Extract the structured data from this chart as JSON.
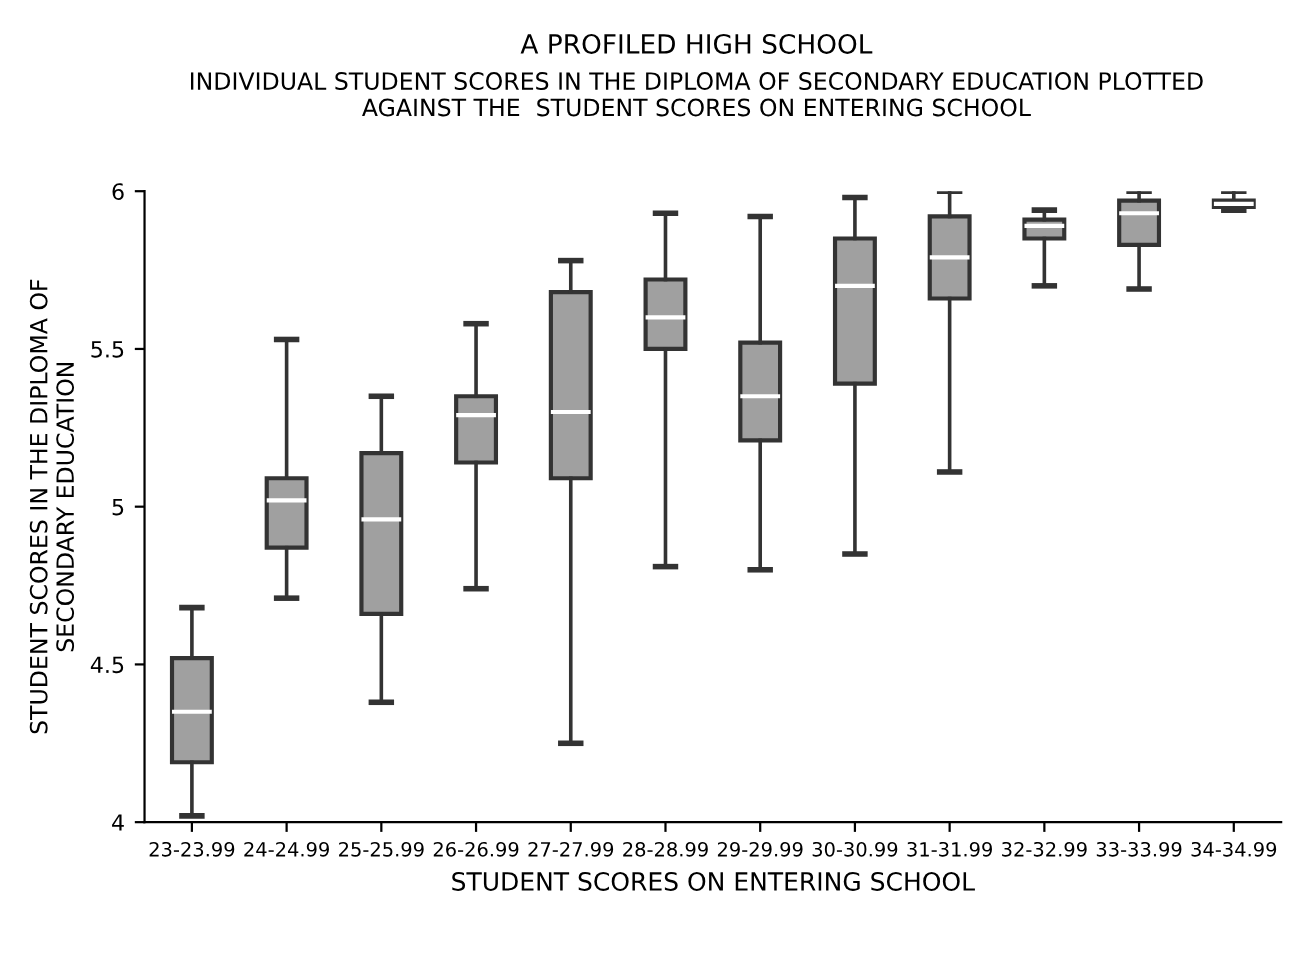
{
  "chart_data": {
    "type": "box",
    "title": "A PROFILED HIGH SCHOOL",
    "subtitle": "INDIVIDUAL STUDENT SCORES IN THE DIPLOMA OF SECONDARY EDUCATION PLOTTED\nAGAINST THE  STUDENT SCORES ON ENTERING SCHOOL",
    "xlabel": "STUDENT SCORES ON ENTERING SCHOOL",
    "ylabel": "STUDENT SCORES IN THE DIPLOMA OF\nSECONDARY EDUCATION",
    "categories": [
      "23-23.99",
      "24-24.99",
      "25-25.99",
      "26-26.99",
      "27-27.99",
      "28-28.99",
      "29-29.99",
      "30-30.99",
      "31-31.99",
      "32-32.99",
      "33-33.99",
      "34-34.99"
    ],
    "boxes": [
      {
        "low": 4.02,
        "q1": 4.19,
        "median": 4.35,
        "q3": 4.52,
        "high": 4.68
      },
      {
        "low": 4.71,
        "q1": 4.87,
        "median": 5.02,
        "q3": 5.09,
        "high": 5.53
      },
      {
        "low": 4.38,
        "q1": 4.66,
        "median": 4.96,
        "q3": 5.17,
        "high": 5.35
      },
      {
        "low": 4.74,
        "q1": 5.14,
        "median": 5.29,
        "q3": 5.35,
        "high": 5.58
      },
      {
        "low": 4.25,
        "q1": 5.09,
        "median": 5.3,
        "q3": 5.68,
        "high": 5.78
      },
      {
        "low": 4.81,
        "q1": 5.5,
        "median": 5.6,
        "q3": 5.72,
        "high": 5.93
      },
      {
        "low": 4.8,
        "q1": 5.21,
        "median": 5.35,
        "q3": 5.52,
        "high": 5.92
      },
      {
        "low": 4.85,
        "q1": 5.39,
        "median": 5.7,
        "q3": 5.85,
        "high": 5.98
      },
      {
        "low": 5.11,
        "q1": 5.66,
        "median": 5.79,
        "q3": 5.92,
        "high": 6.0
      },
      {
        "low": 5.7,
        "q1": 5.85,
        "median": 5.89,
        "q3": 5.91,
        "high": 5.94
      },
      {
        "low": 5.69,
        "q1": 5.83,
        "median": 5.93,
        "q3": 5.97,
        "high": 6.0
      },
      {
        "low": 5.94,
        "q1": 5.95,
        "median": 5.96,
        "q3": 5.97,
        "high": 6.0
      }
    ],
    "color": "#a0a0a0",
    "ylim": [
      4,
      6
    ],
    "yticks": [
      4,
      4.5,
      5,
      5.5,
      6
    ],
    "grid": false
  }
}
